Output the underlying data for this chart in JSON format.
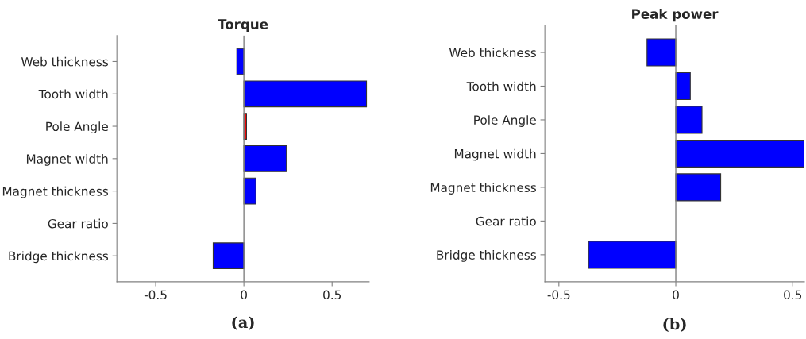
{
  "chart_data": [
    {
      "type": "bar",
      "orientation": "horizontal",
      "title": "Torque",
      "categories": [
        "Web thickness",
        "Tooth width",
        "Pole Angle",
        "Magnet width",
        "Magnet thickness",
        "Gear ratio",
        "Bridge thickness"
      ],
      "values": [
        -0.04,
        0.695,
        0.015,
        0.241,
        0.068,
        null,
        -0.174
      ],
      "colors": [
        "#0000ff",
        "#0000ff",
        "#ff0000",
        "#0000ff",
        "#0000ff",
        "#0000ff",
        "#0000ff"
      ],
      "xlim": [
        -0.72,
        0.71
      ],
      "xticks": [
        -0.5,
        0,
        0.5
      ],
      "ref_lines": [
        {
          "axis": "x",
          "value": 0,
          "color": "#808080"
        }
      ],
      "grid": false,
      "legend": false,
      "annotations": [
        "(a)"
      ]
    },
    {
      "type": "bar",
      "orientation": "horizontal",
      "title": "Peak power",
      "categories": [
        "Web thickness",
        "Tooth width",
        "Pole Angle",
        "Magnet width",
        "Magnet thickness",
        "Gear ratio",
        "Bridge thickness"
      ],
      "values": [
        -0.123,
        0.062,
        0.112,
        0.55,
        0.192,
        null,
        -0.373
      ],
      "colors": [
        "#0000ff",
        "#0000ff",
        "#0000ff",
        "#0000ff",
        "#0000ff",
        "#0000ff",
        "#0000ff"
      ],
      "xlim": [
        -0.56,
        0.55
      ],
      "xticks": [
        -0.5,
        0,
        0.5
      ],
      "ref_lines": [
        {
          "axis": "x",
          "value": 0,
          "color": "#808080"
        }
      ],
      "grid": false,
      "legend": false,
      "annotations": [
        "(b)"
      ]
    }
  ]
}
